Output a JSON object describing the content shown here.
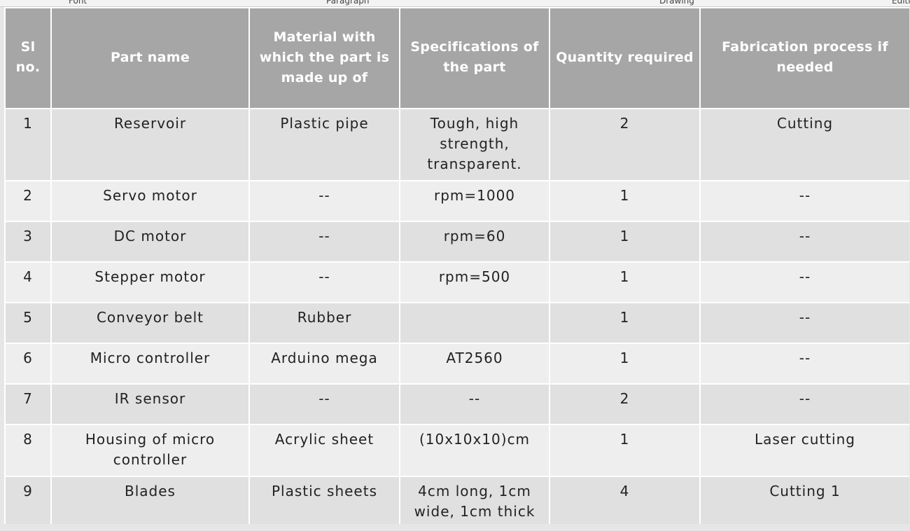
{
  "ribbon": {
    "groups": [
      "Font",
      "Paragraph",
      "Drawing",
      "Editing"
    ]
  },
  "table": {
    "header": [
      "Sl no.",
      "Part name",
      "Material with which the part is made up of",
      "Specifications of the part",
      "Quantity required",
      "Fabrication process if needed"
    ],
    "rows": [
      [
        "1",
        "Reservoir",
        "Plastic pipe",
        "Tough, high strength, transparent.",
        "2",
        "Cutting"
      ],
      [
        "2",
        "Servo motor",
        "--",
        "rpm=1000",
        "1",
        "--"
      ],
      [
        "3",
        "DC motor",
        "--",
        "rpm=60",
        "1",
        "--"
      ],
      [
        "4",
        "Stepper motor",
        "--",
        "rpm=500",
        "1",
        "--"
      ],
      [
        "5",
        "Conveyor belt",
        "Rubber",
        null,
        "1",
        "--"
      ],
      [
        "6",
        "Micro controller",
        "Arduino mega",
        "AT2560",
        "1",
        "--"
      ],
      [
        "7",
        "IR sensor",
        "--",
        "--",
        "2",
        "--"
      ],
      [
        "8",
        "Housing of micro controller",
        "Acrylic sheet",
        "(10x10x10)cm",
        "1",
        "Laser cutting"
      ],
      [
        "9",
        "Blades",
        "Plastic sheets",
        "4cm long, 1cm wide, 1cm thick",
        "4",
        "Cutting 1"
      ]
    ]
  }
}
